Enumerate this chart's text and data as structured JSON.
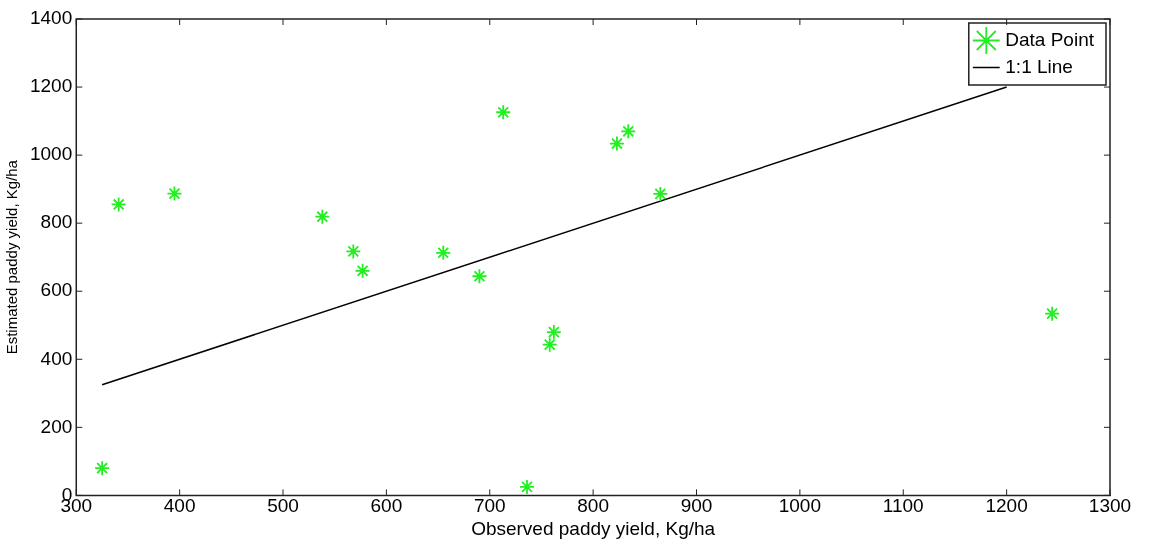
{
  "chart_data": {
    "type": "scatter",
    "xlabel": "Observed paddy yield, Kg/ha",
    "ylabel": "Estimated paddy yield, Kg/ha",
    "xlim": [
      300,
      1300
    ],
    "xticks": [
      300,
      400,
      500,
      600,
      700,
      800,
      900,
      1000,
      1100,
      1200,
      1300
    ],
    "ylim": [
      0,
      1400
    ],
    "yticks": [
      0,
      200,
      400,
      600,
      800,
      1000,
      1200,
      1400
    ],
    "grid": false,
    "legend": "top right",
    "marker": "cross",
    "series": [
      {
        "name": "Data Point",
        "type": "scatter",
        "color": "#22ee22",
        "x": [
          325,
          341,
          395,
          538,
          568,
          577,
          655,
          690,
          713,
          736,
          758,
          762,
          823,
          834,
          865,
          1244
        ],
        "values": [
          80,
          855,
          887,
          819,
          717,
          660,
          713,
          644,
          1126,
          25,
          443,
          480,
          1034,
          1070,
          886,
          534
        ]
      },
      {
        "name": "1:1 Line",
        "type": "line",
        "color": "#000000",
        "marker": "none",
        "line_style": "solid",
        "x": [
          325,
          1200
        ],
        "values": [
          325,
          1200
        ]
      }
    ]
  }
}
